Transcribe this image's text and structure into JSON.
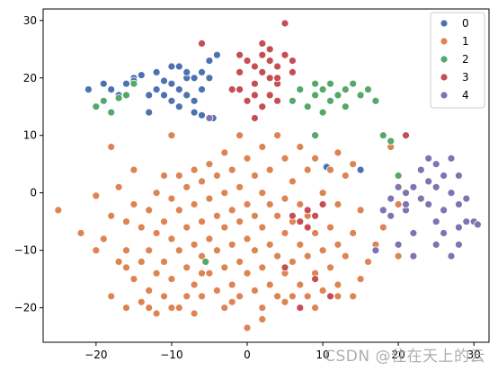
{
  "chart_data": {
    "type": "scatter",
    "xlim": [
      -27,
      32
    ],
    "ylim": [
      -26,
      32
    ],
    "x_ticks": [
      -20,
      -10,
      0,
      10,
      20,
      30
    ],
    "y_ticks": [
      -20,
      -10,
      0,
      10,
      20,
      30
    ],
    "legend_position": "top-right",
    "grid": false,
    "series": [
      {
        "name": "0",
        "color": "#4c72b0",
        "points": [
          [
            -21,
            18
          ],
          [
            -19,
            19
          ],
          [
            -18,
            18
          ],
          [
            -17,
            17
          ],
          [
            -16,
            19
          ],
          [
            -15,
            20
          ],
          [
            -14,
            20.5
          ],
          [
            -13,
            14
          ],
          [
            -12,
            21
          ],
          [
            -12,
            18
          ],
          [
            -11,
            17
          ],
          [
            -10,
            16
          ],
          [
            -10,
            19
          ],
          [
            -9,
            22
          ],
          [
            -9,
            18
          ],
          [
            -8,
            20
          ],
          [
            -8,
            17
          ],
          [
            -7,
            20
          ],
          [
            -7,
            16
          ],
          [
            -6,
            21
          ],
          [
            -6,
            18
          ],
          [
            -5,
            23
          ],
          [
            -5,
            20
          ],
          [
            -4,
            24
          ],
          [
            -10,
            22
          ],
          [
            -11,
            19.5
          ],
          [
            -9,
            15
          ],
          [
            -7,
            14
          ],
          [
            -6,
            13.5
          ],
          [
            -12,
            0
          ],
          [
            -4.5,
            13
          ],
          [
            -8,
            21
          ],
          [
            -13,
            17
          ],
          [
            -15,
            19.5
          ],
          [
            10.5,
            4.5
          ],
          [
            15,
            4
          ]
        ]
      },
      {
        "name": "1",
        "color": "#dd8452",
        "points": [
          [
            -25,
            -3
          ],
          [
            -22,
            -7
          ],
          [
            -20,
            -0.5
          ],
          [
            -20,
            -10
          ],
          [
            -19,
            -8
          ],
          [
            -18,
            -4
          ],
          [
            -18,
            8
          ],
          [
            -18,
            -18
          ],
          [
            -17,
            1
          ],
          [
            -17,
            -12
          ],
          [
            -16,
            -5
          ],
          [
            -16,
            -10
          ],
          [
            -16,
            -20
          ],
          [
            -15,
            4
          ],
          [
            -15,
            -2
          ],
          [
            -15,
            -15
          ],
          [
            -14,
            -6
          ],
          [
            -14,
            -12
          ],
          [
            -14,
            -19
          ],
          [
            -13,
            -3
          ],
          [
            -13,
            -10
          ],
          [
            -13,
            -17
          ],
          [
            -12,
            0
          ],
          [
            -12,
            -7
          ],
          [
            -12,
            -14
          ],
          [
            -12,
            -21
          ],
          [
            -11,
            3
          ],
          [
            -11,
            -5
          ],
          [
            -11,
            -12
          ],
          [
            -11,
            -18
          ],
          [
            -10,
            10
          ],
          [
            -10,
            -1
          ],
          [
            -10,
            -8
          ],
          [
            -10,
            -15
          ],
          [
            -9,
            3
          ],
          [
            -9,
            -3
          ],
          [
            -9,
            -10
          ],
          [
            -9,
            -20
          ],
          [
            -8,
            1
          ],
          [
            -8,
            -6
          ],
          [
            -8,
            -13
          ],
          [
            -8,
            -18
          ],
          [
            -7,
            4
          ],
          [
            -7,
            -2
          ],
          [
            -7,
            -9
          ],
          [
            -7,
            -16
          ],
          [
            -7,
            -21
          ],
          [
            -6,
            2
          ],
          [
            -6,
            -5
          ],
          [
            -6,
            -11
          ],
          [
            -6,
            -18
          ],
          [
            -5,
            5
          ],
          [
            -5,
            -1
          ],
          [
            -5,
            -8
          ],
          [
            -5,
            -14
          ],
          [
            -4,
            3
          ],
          [
            -4,
            -4
          ],
          [
            -4,
            -10
          ],
          [
            -4,
            -17
          ],
          [
            -3,
            7
          ],
          [
            -3,
            0
          ],
          [
            -3,
            -6
          ],
          [
            -3,
            -13
          ],
          [
            -3,
            -20
          ],
          [
            -2,
            4
          ],
          [
            -2,
            -3
          ],
          [
            -2,
            -9
          ],
          [
            -2,
            -16
          ],
          [
            -1,
            10
          ],
          [
            -1,
            1
          ],
          [
            -1,
            -5
          ],
          [
            -1,
            -12
          ],
          [
            -1,
            -18
          ],
          [
            0,
            6
          ],
          [
            0,
            -2
          ],
          [
            0,
            -8
          ],
          [
            0,
            -14
          ],
          [
            0,
            -23.5
          ],
          [
            1,
            3
          ],
          [
            1,
            -4
          ],
          [
            1,
            -10
          ],
          [
            1,
            -17
          ],
          [
            2,
            8
          ],
          [
            2,
            0
          ],
          [
            2,
            -6
          ],
          [
            2,
            -13
          ],
          [
            2,
            -20
          ],
          [
            3,
            4
          ],
          [
            3,
            -2
          ],
          [
            3,
            -9
          ],
          [
            3,
            -16
          ],
          [
            4,
            10
          ],
          [
            4,
            -4
          ],
          [
            4,
            -11
          ],
          [
            4,
            -18
          ],
          [
            5,
            6
          ],
          [
            5,
            -1
          ],
          [
            5,
            -7
          ],
          [
            5,
            -14
          ],
          [
            5,
            -19
          ],
          [
            6,
            2
          ],
          [
            6,
            -5
          ],
          [
            6,
            -12
          ],
          [
            7,
            8
          ],
          [
            7,
            -2
          ],
          [
            7,
            -9
          ],
          [
            7,
            -16
          ],
          [
            8,
            4
          ],
          [
            8,
            -4
          ],
          [
            8,
            -11
          ],
          [
            8,
            -18
          ],
          [
            9,
            6
          ],
          [
            9,
            -7
          ],
          [
            9,
            -14
          ],
          [
            10,
            0
          ],
          [
            10,
            -10
          ],
          [
            10,
            -17
          ],
          [
            11,
            4
          ],
          [
            11,
            -6
          ],
          [
            11,
            -13
          ],
          [
            12,
            7
          ],
          [
            12,
            -2
          ],
          [
            12,
            -9
          ],
          [
            12,
            -16
          ],
          [
            13,
            3
          ],
          [
            13,
            -11
          ],
          [
            14,
            5
          ],
          [
            14,
            -7
          ],
          [
            14,
            -18
          ],
          [
            15,
            -3
          ],
          [
            15,
            -15
          ],
          [
            16,
            -12
          ],
          [
            17,
            -9
          ],
          [
            18,
            -6
          ],
          [
            19,
            8
          ],
          [
            20,
            -2
          ],
          [
            20,
            -11
          ],
          [
            -16,
            -13
          ],
          [
            -13,
            -20
          ],
          [
            -10,
            -20
          ],
          [
            -6,
            -14
          ],
          [
            -2,
            -19
          ],
          [
            2,
            -22
          ],
          [
            6,
            -18
          ],
          [
            9,
            -20
          ],
          [
            12,
            -18
          ]
        ]
      },
      {
        "name": "2",
        "color": "#55a868",
        "points": [
          [
            -20,
            15
          ],
          [
            -19,
            16
          ],
          [
            -18,
            14
          ],
          [
            -17,
            16.5
          ],
          [
            -16,
            17
          ],
          [
            -15,
            19
          ],
          [
            6,
            16
          ],
          [
            7,
            18
          ],
          [
            8,
            15
          ],
          [
            9,
            17
          ],
          [
            9,
            19
          ],
          [
            10,
            14
          ],
          [
            10,
            18
          ],
          [
            11,
            16
          ],
          [
            11,
            19
          ],
          [
            12,
            17
          ],
          [
            13,
            15
          ],
          [
            13,
            18
          ],
          [
            14,
            19
          ],
          [
            15,
            17
          ],
          [
            16,
            18
          ],
          [
            17,
            16
          ],
          [
            18,
            10
          ],
          [
            19,
            9
          ],
          [
            20,
            3
          ],
          [
            9,
            10
          ],
          [
            -5.5,
            -12
          ]
        ]
      },
      {
        "name": "3",
        "color": "#c44e52",
        "points": [
          [
            -6,
            26
          ],
          [
            -1,
            24
          ],
          [
            0,
            23
          ],
          [
            1,
            22
          ],
          [
            1,
            19
          ],
          [
            2,
            26
          ],
          [
            2,
            24
          ],
          [
            2,
            21
          ],
          [
            3,
            25
          ],
          [
            3,
            23
          ],
          [
            3,
            20
          ],
          [
            4,
            22
          ],
          [
            4,
            19
          ],
          [
            5,
            24
          ],
          [
            5,
            29.5
          ],
          [
            6,
            23
          ],
          [
            -1,
            21
          ],
          [
            -1,
            18
          ],
          [
            0,
            16
          ],
          [
            1,
            17
          ],
          [
            2,
            15
          ],
          [
            3,
            17
          ],
          [
            4,
            16
          ],
          [
            1,
            13
          ],
          [
            -2,
            18
          ],
          [
            6,
            -4
          ],
          [
            7,
            -5
          ],
          [
            8,
            -6
          ],
          [
            9,
            -4
          ],
          [
            10,
            -2
          ],
          [
            8,
            -3
          ],
          [
            5,
            -13
          ],
          [
            7,
            -20
          ],
          [
            9,
            -15
          ],
          [
            11,
            -18
          ],
          [
            21,
            10
          ],
          [
            4,
            20
          ],
          [
            6,
            21
          ]
        ]
      },
      {
        "name": "4",
        "color": "#8172b2",
        "points": [
          [
            -5,
            13
          ],
          [
            17,
            -10
          ],
          [
            18,
            -3
          ],
          [
            19,
            -1
          ],
          [
            20,
            1
          ],
          [
            21,
            0
          ],
          [
            21,
            -3
          ],
          [
            22,
            1
          ],
          [
            22,
            -7
          ],
          [
            23,
            -1
          ],
          [
            23,
            4
          ],
          [
            24,
            6
          ],
          [
            24,
            2
          ],
          [
            24,
            -2
          ],
          [
            25,
            5
          ],
          [
            25,
            1
          ],
          [
            25,
            -5
          ],
          [
            25,
            -9
          ],
          [
            26,
            3
          ],
          [
            26,
            -3
          ],
          [
            26,
            -7
          ],
          [
            27,
            6
          ],
          [
            27,
            0
          ],
          [
            27,
            -11
          ],
          [
            28,
            3
          ],
          [
            28,
            -2
          ],
          [
            28,
            -6
          ],
          [
            28,
            -9
          ],
          [
            29,
            -1
          ],
          [
            29,
            -5
          ],
          [
            30,
            -5
          ],
          [
            30.5,
            -5.5
          ],
          [
            20,
            -9
          ],
          [
            22,
            -11
          ],
          [
            19,
            -4
          ],
          [
            21,
            -2
          ]
        ]
      }
    ]
  },
  "watermark": "CSDN @住在天上的云"
}
